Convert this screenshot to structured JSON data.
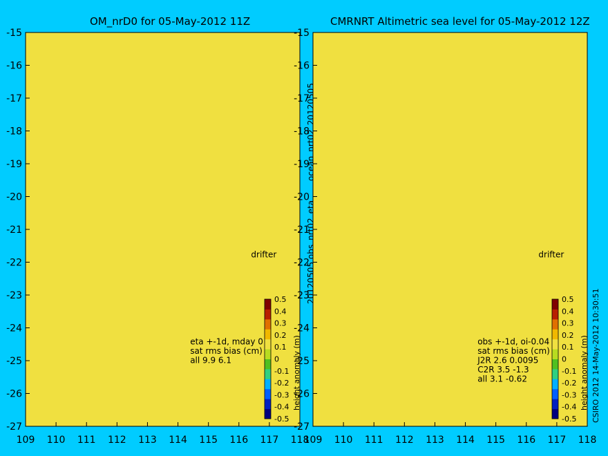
{
  "colors": {
    "background": "#00ccff",
    "land": "#f8c89c",
    "coastline": "#000000",
    "shelf_edge": "#33cccc",
    "vector": "#ff33ff",
    "transect": "#ffffff",
    "no_data": "#b8a8a0"
  },
  "captions": {
    "credit": "CSIRO 2012  14-May-2012 10:30:51",
    "date_tag": "ocean_nrt02_20120505",
    "file_tag": "20120505.obs_nrt02_eta"
  },
  "colorbar": {
    "label": "height anomaly (m)",
    "ticks": [
      "-0.5",
      "-0.4",
      "-0.3",
      "-0.2",
      "-0.1",
      "0",
      "0.1",
      "0.2",
      "0.3",
      "0.4",
      "0.5"
    ],
    "colors": [
      "#00007f",
      "#0020c0",
      "#0060ff",
      "#00b0ff",
      "#30d080",
      "#50c020",
      "#b8dc20",
      "#f0e040",
      "#f0b800",
      "#e07000",
      "#b82000",
      "#800000"
    ]
  },
  "chart_data": [
    {
      "type": "heatmap",
      "title": "OM_nrD0 for 05-May-2012 11Z",
      "xlim": [
        109,
        118
      ],
      "ylim": [
        -27,
        -15
      ],
      "x_ticks": [
        "109",
        "110",
        "111",
        "112",
        "113",
        "114",
        "115",
        "116",
        "117",
        "118"
      ],
      "y_ticks": [
        "-15",
        "-16",
        "-17",
        "-18",
        "-19",
        "-20",
        "-21",
        "-22",
        "-23",
        "-24",
        "-25",
        "-26",
        "-27"
      ],
      "colorbar_range": [
        -0.5,
        0.5
      ],
      "drifter_label": "drifter",
      "stats": [
        "eta +-1d, mday 0",
        "sat rms bias (cm)",
        "all 9.9 6.1"
      ]
    },
    {
      "type": "heatmap",
      "title": "CMRNRT Altimetric sea level  for 05-May-2012 12Z",
      "xlim": [
        109,
        118
      ],
      "ylim": [
        -27,
        -15
      ],
      "x_ticks": [
        "109",
        "110",
        "111",
        "112",
        "113",
        "114",
        "115",
        "116",
        "117",
        "118"
      ],
      "y_ticks": [
        "-15",
        "-16",
        "-17",
        "-18",
        "-19",
        "-20",
        "-21",
        "-22",
        "-23",
        "-24",
        "-25",
        "-26",
        "-27"
      ],
      "colorbar_range": [
        -0.5,
        0.5
      ],
      "drifter_label": "drifter",
      "stats": [
        "obs +-1d, oi-0.04",
        "sat rms bias (cm)",
        "J2R   2.6 0.0095",
        "C2R   3.5 -1.3",
        "all 3.1 -0.62"
      ]
    }
  ]
}
